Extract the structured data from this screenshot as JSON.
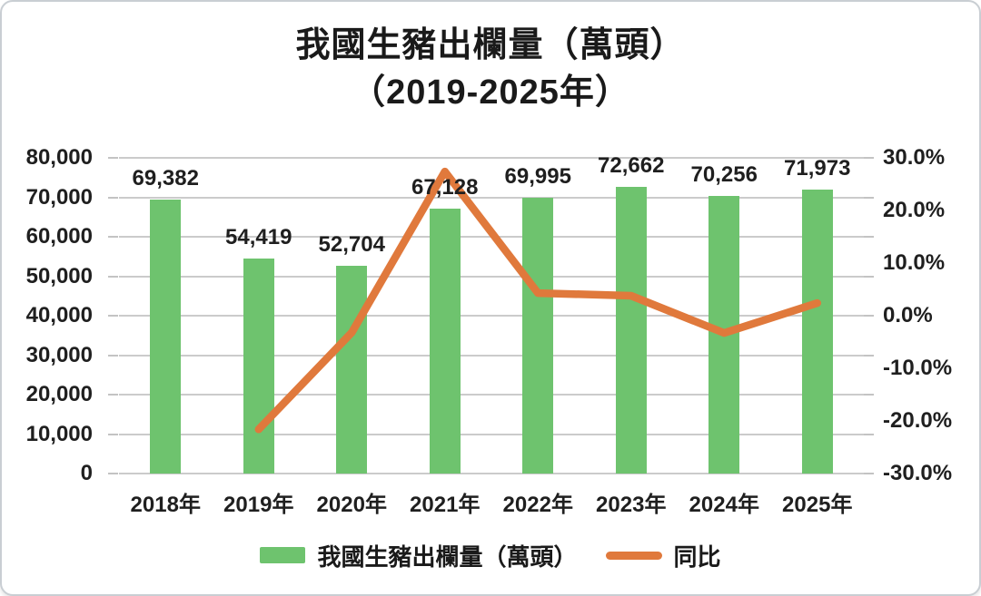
{
  "chart_data": {
    "type": "combo-bar-line",
    "title": "我國生豬出欄量（萬頭）",
    "subtitle": "（2019-2025年）",
    "categories": [
      "2018年",
      "2019年",
      "2020年",
      "2021年",
      "2022年",
      "2023年",
      "2024年",
      "2025年"
    ],
    "series": [
      {
        "name": "我國生豬出欄量（萬頭）",
        "type": "bar",
        "axis": "left",
        "color": "#6EC36E",
        "values": [
          69382,
          54419,
          52704,
          67128,
          69995,
          72662,
          70256,
          71973
        ],
        "value_labels": [
          "69,382",
          "54,419",
          "52,704",
          "67,128",
          "69,995",
          "72,662",
          "70,256",
          "71,973"
        ]
      },
      {
        "name": "同比",
        "type": "line",
        "axis": "right",
        "color": "#E0793C",
        "values": [
          null,
          -21.6,
          -3.2,
          27.4,
          4.3,
          3.8,
          -3.3,
          2.4
        ]
      }
    ],
    "left_axis": {
      "min": 0,
      "max": 80000,
      "step": 10000,
      "tick_labels": [
        "80,000",
        "70,000",
        "60,000",
        "50,000",
        "40,000",
        "30,000",
        "20,000",
        "10,000",
        "0"
      ]
    },
    "right_axis": {
      "min": -30,
      "max": 30,
      "step": 10,
      "unit": "%",
      "tick_labels": [
        "30.0%",
        "20.0%",
        "10.0%",
        "0.0%",
        "-10.0%",
        "-20.0%",
        "-30.0%"
      ]
    },
    "grid": true,
    "legend_position": "bottom",
    "colors": {
      "bar": "#6EC36E",
      "line": "#E0793C",
      "grid": "#CBCBCB",
      "text": "#1A1A1A"
    }
  }
}
